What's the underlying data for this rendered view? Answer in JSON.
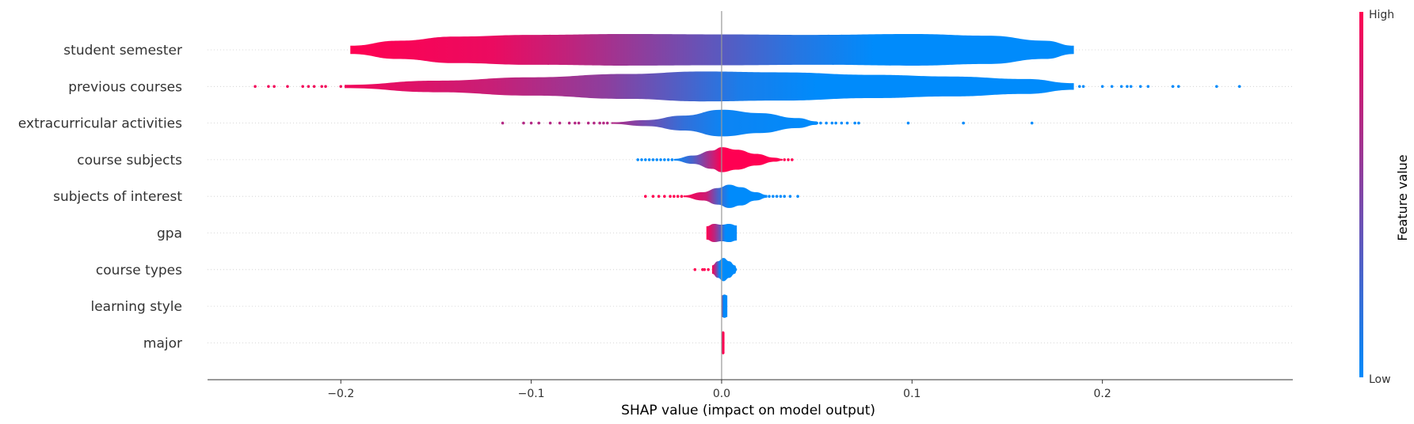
{
  "chart_data": {
    "type": "violin",
    "xlabel": "SHAP value (impact on model output)",
    "xlim": [
      -0.27,
      0.3
    ],
    "xticks": [
      {
        "value": -0.2,
        "label": "−0.2"
      },
      {
        "value": -0.1,
        "label": "−0.1"
      },
      {
        "value": 0.0,
        "label": "0.0"
      },
      {
        "value": 0.1,
        "label": "0.1"
      },
      {
        "value": 0.2,
        "label": "0.2"
      }
    ],
    "colorbar": {
      "title": "Feature value",
      "high_label": "High",
      "low_label": "Low",
      "high_color": "#ff0052",
      "low_color": "#008bfb"
    },
    "features": [
      {
        "name": "student semester",
        "shape": [
          [
            -0.195,
            0.25
          ],
          [
            -0.17,
            0.55
          ],
          [
            -0.14,
            0.8
          ],
          [
            -0.1,
            0.9
          ],
          [
            -0.05,
            0.95
          ],
          [
            0,
            0.93
          ],
          [
            0.05,
            0.9
          ],
          [
            0.1,
            0.95
          ],
          [
            0.14,
            0.85
          ],
          [
            0.17,
            0.55
          ],
          [
            0.185,
            0.25
          ]
        ],
        "colors": [
          [
            -0.195,
            1
          ],
          [
            -0.12,
            0.92
          ],
          [
            -0.08,
            0.75
          ],
          [
            -0.04,
            0.55
          ],
          [
            0,
            0.35
          ],
          [
            0.04,
            0.15
          ],
          [
            0.08,
            0
          ],
          [
            0.185,
            0
          ]
        ],
        "outliers_low": [],
        "outliers_high": []
      },
      {
        "name": "previous courses",
        "shape": [
          [
            -0.198,
            0.1
          ],
          [
            -0.15,
            0.35
          ],
          [
            -0.1,
            0.55
          ],
          [
            -0.05,
            0.75
          ],
          [
            -0.01,
            0.9
          ],
          [
            0.03,
            0.85
          ],
          [
            0.08,
            0.7
          ],
          [
            0.12,
            0.6
          ],
          [
            0.16,
            0.45
          ],
          [
            0.185,
            0.2
          ]
        ],
        "colors": [
          [
            -0.198,
            0.95
          ],
          [
            -0.12,
            0.78
          ],
          [
            -0.06,
            0.55
          ],
          [
            -0.02,
            0.3
          ],
          [
            0.01,
            0.1
          ],
          [
            0.05,
            0
          ],
          [
            0.185,
            0
          ]
        ],
        "outliers_low": [
          -0.245,
          -0.238,
          -0.235,
          -0.228,
          -0.22,
          -0.217,
          -0.214,
          -0.21,
          -0.208,
          -0.2
        ],
        "outliers_high": [
          0.188,
          0.19,
          0.2,
          0.205,
          0.21,
          0.213,
          0.215,
          0.22,
          0.224,
          0.237,
          0.24,
          0.26,
          0.272
        ]
      },
      {
        "name": "extracurricular activities",
        "shape": [
          [
            -0.058,
            0.05
          ],
          [
            -0.04,
            0.18
          ],
          [
            -0.02,
            0.45
          ],
          [
            0,
            0.8
          ],
          [
            0.02,
            0.6
          ],
          [
            0.04,
            0.3
          ],
          [
            0.05,
            0.1
          ]
        ],
        "colors": [
          [
            -0.058,
            0.7
          ],
          [
            -0.04,
            0.45
          ],
          [
            -0.02,
            0.2
          ],
          [
            0,
            0.05
          ],
          [
            0.05,
            0
          ]
        ],
        "outliers_low": [
          -0.115,
          -0.104,
          -0.1,
          -0.096,
          -0.09,
          -0.085,
          -0.08,
          -0.077,
          -0.075,
          -0.07,
          -0.067,
          -0.064,
          -0.062,
          -0.06
        ],
        "outliers_high": [
          0.05,
          0.052,
          0.055,
          0.058,
          0.06,
          0.063,
          0.066,
          0.07,
          0.072,
          0.098,
          0.127,
          0.163
        ]
      },
      {
        "name": "course subjects",
        "shape": [
          [
            -0.025,
            0.05
          ],
          [
            -0.015,
            0.25
          ],
          [
            -0.005,
            0.55
          ],
          [
            0,
            0.75
          ],
          [
            0.008,
            0.6
          ],
          [
            0.018,
            0.35
          ],
          [
            0.028,
            0.12
          ],
          [
            0.032,
            0.05
          ]
        ],
        "colors": [
          [
            -0.025,
            0
          ],
          [
            -0.015,
            0.3
          ],
          [
            -0.005,
            0.75
          ],
          [
            0,
            1
          ],
          [
            0.032,
            1
          ]
        ],
        "outliers_low": [
          -0.044,
          -0.042,
          -0.04,
          -0.038,
          -0.036,
          -0.034,
          -0.032,
          -0.03,
          -0.028,
          -0.026
        ],
        "outliers_high": [
          0.033,
          0.035,
          0.037
        ]
      },
      {
        "name": "subjects of interest",
        "shape": [
          [
            -0.02,
            0.05
          ],
          [
            -0.01,
            0.25
          ],
          [
            -0.002,
            0.5
          ],
          [
            0.004,
            0.7
          ],
          [
            0.01,
            0.55
          ],
          [
            0.018,
            0.25
          ],
          [
            0.024,
            0.08
          ]
        ],
        "colors": [
          [
            -0.02,
            1
          ],
          [
            -0.008,
            0.8
          ],
          [
            -0.002,
            0.3
          ],
          [
            0.004,
            0
          ],
          [
            0.024,
            0
          ]
        ],
        "outliers_low": [
          -0.04,
          -0.036,
          -0.033,
          -0.03,
          -0.027,
          -0.025,
          -0.023,
          -0.021
        ],
        "outliers_high": [
          0.025,
          0.027,
          0.029,
          0.031,
          0.033,
          0.036,
          0.04
        ]
      },
      {
        "name": "gpa",
        "shape": [
          [
            -0.008,
            0.4
          ],
          [
            -0.004,
            0.55
          ],
          [
            0,
            0.5
          ],
          [
            0.004,
            0.55
          ],
          [
            0.008,
            0.45
          ]
        ],
        "colors": [
          [
            -0.008,
            1
          ],
          [
            -0.004,
            0.75
          ],
          [
            0,
            0.3
          ],
          [
            0.002,
            0
          ],
          [
            0.008,
            0
          ]
        ],
        "outliers_low": [],
        "outliers_high": []
      },
      {
        "name": "course types",
        "shape": [
          [
            -0.005,
            0.25
          ],
          [
            -0.002,
            0.5
          ],
          [
            0.001,
            0.7
          ],
          [
            0.004,
            0.5
          ],
          [
            0.007,
            0.25
          ],
          [
            0.008,
            0.05
          ]
        ],
        "colors": [
          [
            -0.005,
            1
          ],
          [
            -0.003,
            0.6
          ],
          [
            -0.001,
            0
          ],
          [
            0.008,
            0
          ]
        ],
        "outliers_low": [
          -0.014,
          -0.01,
          -0.009,
          -0.007
        ],
        "outliers_high": []
      },
      {
        "name": "learning style",
        "shape": [
          [
            0,
            0.65
          ],
          [
            0.0015,
            0.7
          ],
          [
            0.003,
            0.65
          ]
        ],
        "colors": [
          [
            0,
            0.6
          ],
          [
            0.001,
            0
          ],
          [
            0.003,
            0
          ]
        ],
        "outliers_low": [],
        "outliers_high": []
      },
      {
        "name": "major",
        "shape": [
          [
            0,
            0.65
          ],
          [
            0.0008,
            0.7
          ],
          [
            0.0015,
            0.65
          ]
        ],
        "colors": [
          [
            0,
            1
          ],
          [
            0.0015,
            1
          ]
        ],
        "outliers_low": [],
        "outliers_high": []
      }
    ]
  }
}
